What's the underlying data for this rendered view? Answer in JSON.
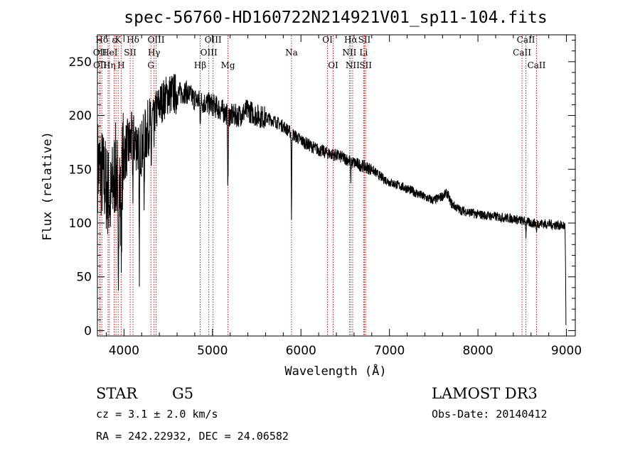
{
  "chart_data": {
    "type": "line",
    "title": "spec-56760-HD160722N214921V01_sp11-104.fits",
    "xlabel": "Wavelength (Å)",
    "ylabel": "Flux (relative)",
    "xlim": [
      3700,
      9100
    ],
    "ylim": [
      -5,
      275
    ],
    "x_ticks": [
      4000,
      5000,
      6000,
      7000,
      8000,
      9000
    ],
    "x_tick_labels": [
      "4000",
      "5000",
      "6000",
      "7000",
      "8000",
      "9000"
    ],
    "y_ticks": [
      0,
      50,
      100,
      150,
      200,
      250
    ],
    "y_tick_labels": [
      "0",
      "50",
      "100",
      "150",
      "200",
      "250"
    ],
    "line_color": "#000000",
    "marker_color": "#cc0000",
    "continuum_anchors": [
      [
        3700,
        155
      ],
      [
        3780,
        140
      ],
      [
        3850,
        120
      ],
      [
        3900,
        150
      ],
      [
        3950,
        140
      ],
      [
        4000,
        165
      ],
      [
        4100,
        178
      ],
      [
        4200,
        170
      ],
      [
        4300,
        195
      ],
      [
        4400,
        210
      ],
      [
        4500,
        220
      ],
      [
        4600,
        220
      ],
      [
        4700,
        222
      ],
      [
        4800,
        215
      ],
      [
        4900,
        212
      ],
      [
        5000,
        210
      ],
      [
        5100,
        205
      ],
      [
        5200,
        200
      ],
      [
        5300,
        200
      ],
      [
        5400,
        205
      ],
      [
        5500,
        200
      ],
      [
        5600,
        198
      ],
      [
        5700,
        195
      ],
      [
        5800,
        190
      ],
      [
        5900,
        183
      ],
      [
        6000,
        177
      ],
      [
        6100,
        172
      ],
      [
        6200,
        168
      ],
      [
        6300,
        165
      ],
      [
        6400,
        163
      ],
      [
        6500,
        160
      ],
      [
        6600,
        156
      ],
      [
        6700,
        153
      ],
      [
        6800,
        150
      ],
      [
        6900,
        143
      ],
      [
        7000,
        138
      ],
      [
        7100,
        135
      ],
      [
        7200,
        132
      ],
      [
        7300,
        128
      ],
      [
        7400,
        124
      ],
      [
        7500,
        121
      ],
      [
        7600,
        125
      ],
      [
        7650,
        128
      ],
      [
        7700,
        118
      ],
      [
        7800,
        112
      ],
      [
        8000,
        108
      ],
      [
        8200,
        106
      ],
      [
        8400,
        104
      ],
      [
        8600,
        100
      ],
      [
        8800,
        99
      ],
      [
        9000,
        97
      ]
    ],
    "absorption_features": [
      {
        "wavelength": 3934,
        "depth": 75,
        "width": 8
      },
      {
        "wavelength": 3968,
        "depth": 65,
        "width": 8
      },
      {
        "wavelength": 4101,
        "depth": 40,
        "width": 5
      },
      {
        "wavelength": 4173,
        "depth": 115,
        "width": 5
      },
      {
        "wavelength": 4227,
        "depth": 60,
        "width": 4
      },
      {
        "wavelength": 4308,
        "depth": 45,
        "width": 5
      },
      {
        "wavelength": 4340,
        "depth": 30,
        "width": 4
      },
      {
        "wavelength": 4861,
        "depth": 25,
        "width": 4
      },
      {
        "wavelength": 5175,
        "depth": 70,
        "width": 5
      },
      {
        "wavelength": 5893,
        "depth": 80,
        "width": 4
      },
      {
        "wavelength": 6563,
        "depth": 18,
        "width": 4
      },
      {
        "wavelength": 8542,
        "depth": 12,
        "width": 4
      },
      {
        "wavelength": 8662,
        "depth": 10,
        "width": 4
      }
    ],
    "spectral_lines": [
      {
        "label": "Hδ",
        "wavelength": 3750,
        "row": 0
      },
      {
        "label": "OII",
        "wavelength": 3727,
        "row": 1
      },
      {
        "label": "OII",
        "wavelength": 3729,
        "row": 2
      },
      {
        "label": "He",
        "wavelength": 3820,
        "row": 1
      },
      {
        "label": "Hη",
        "wavelength": 3835,
        "row": 2
      },
      {
        "label": "ε",
        "wavelength": 3889,
        "row": 0
      },
      {
        "label": "K",
        "wavelength": 3934,
        "row": 0
      },
      {
        "label": "I",
        "wavelength": 3910,
        "row": 1
      },
      {
        "label": "H",
        "wavelength": 3968,
        "row": 2
      },
      {
        "label": "SII",
        "wavelength": 4070,
        "row": 1
      },
      {
        "label": "Hδ",
        "wavelength": 4102,
        "row": 0
      },
      {
        "label": "OIII",
        "wavelength": 4363,
        "row": 0
      },
      {
        "label": "Hγ",
        "wavelength": 4340,
        "row": 1
      },
      {
        "label": "G",
        "wavelength": 4304,
        "row": 2
      },
      {
        "label": "Hβ",
        "wavelength": 4861,
        "row": 2
      },
      {
        "label": "OIII",
        "wavelength": 5007,
        "row": 0
      },
      {
        "label": "OIII",
        "wavelength": 4959,
        "row": 1
      },
      {
        "label": "Mg",
        "wavelength": 5175,
        "row": 2
      },
      {
        "label": "Na",
        "wavelength": 5893,
        "row": 1
      },
      {
        "label": "OI",
        "wavelength": 6300,
        "row": 0
      },
      {
        "label": "OI",
        "wavelength": 6364,
        "row": 2
      },
      {
        "label": "Hα",
        "wavelength": 6563,
        "row": 0
      },
      {
        "label": "NII",
        "wavelength": 6548,
        "row": 1
      },
      {
        "label": "NII",
        "wavelength": 6584,
        "row": 2
      },
      {
        "label": "SII",
        "wavelength": 6717,
        "row": 0
      },
      {
        "label": "Li",
        "wavelength": 6708,
        "row": 1
      },
      {
        "label": "SII",
        "wavelength": 6731,
        "row": 2
      },
      {
        "label": "CaII",
        "wavelength": 8542,
        "row": 0
      },
      {
        "label": "CaII",
        "wavelength": 8498,
        "row": 1
      },
      {
        "label": "CaII",
        "wavelength": 8662,
        "row": 2
      }
    ]
  },
  "info": {
    "object_type": "STAR",
    "subclass": "G5",
    "redshift": "cz = 3.1 ± 2.0 km/s",
    "coordinates": "RA = 242.22932, DEC =  24.06582",
    "survey": "LAMOST DR3",
    "obs_date": "Obs-Date: 20140412"
  }
}
